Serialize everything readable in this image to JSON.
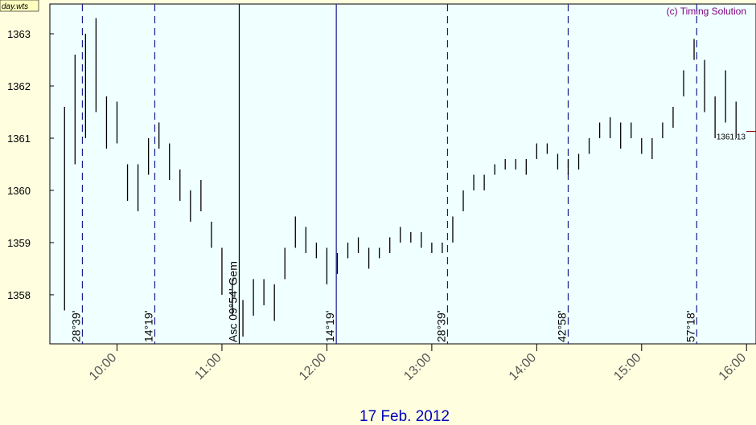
{
  "chart_data": {
    "type": "range-bar",
    "file_label": "day.wts",
    "copyright": "(c) Timing Solution",
    "date_label": "17 Feb. 2012",
    "color": "#000000",
    "x": [
      9.5,
      9.6,
      9.7,
      9.8,
      9.9,
      10.0,
      10.1,
      10.2,
      10.3,
      10.4,
      10.5,
      10.6,
      10.7,
      10.8,
      10.9,
      11.0,
      11.1,
      11.2,
      11.3,
      11.4,
      11.5,
      11.6,
      11.7,
      11.8,
      11.9,
      12.0,
      12.1,
      12.2,
      12.3,
      12.4,
      12.5,
      12.6,
      12.7,
      12.8,
      12.9,
      13.0,
      13.1,
      13.2,
      13.3,
      13.4,
      13.5,
      13.6,
      13.7,
      13.8,
      13.9,
      14.0,
      14.1,
      14.2,
      14.3,
      14.4,
      14.5,
      14.6,
      14.7,
      14.8,
      14.9,
      15.0,
      15.1,
      15.2,
      15.3,
      15.4,
      15.5,
      15.6,
      15.7,
      15.8,
      15.9
    ],
    "low": [
      1357.7,
      1360.5,
      1361.0,
      1361.5,
      1360.8,
      1360.9,
      1359.8,
      1359.6,
      1360.3,
      1360.8,
      1360.2,
      1359.8,
      1359.4,
      1359.6,
      1358.9,
      1358.0,
      1357.6,
      1357.2,
      1357.6,
      1357.8,
      1357.5,
      1358.3,
      1358.9,
      1358.8,
      1358.7,
      1358.2,
      1358.4,
      1358.7,
      1358.8,
      1358.5,
      1358.7,
      1358.8,
      1359.0,
      1359.0,
      1358.9,
      1358.8,
      1358.8,
      1359.0,
      1359.6,
      1360.0,
      1360.0,
      1360.3,
      1360.4,
      1360.4,
      1360.3,
      1360.6,
      1360.7,
      1360.4,
      1360.3,
      1360.4,
      1360.7,
      1361.0,
      1361.0,
      1360.8,
      1361.0,
      1360.7,
      1360.6,
      1361.0,
      1361.2,
      1361.8,
      1362.5,
      1361.5,
      1361.0,
      1361.3,
      1361.0
    ],
    "high": [
      1361.6,
      1362.6,
      1363.0,
      1363.3,
      1361.8,
      1361.7,
      1360.5,
      1360.5,
      1361.0,
      1361.3,
      1360.9,
      1360.4,
      1360.0,
      1360.2,
      1359.4,
      1358.9,
      1358.3,
      1357.9,
      1358.3,
      1358.3,
      1358.2,
      1358.9,
      1359.5,
      1359.3,
      1359.0,
      1358.9,
      1358.8,
      1359.0,
      1359.1,
      1358.9,
      1358.9,
      1359.1,
      1359.3,
      1359.2,
      1359.2,
      1359.0,
      1359.0,
      1359.5,
      1360.0,
      1360.3,
      1360.3,
      1360.5,
      1360.6,
      1360.6,
      1360.6,
      1360.9,
      1360.9,
      1360.7,
      1360.6,
      1360.7,
      1361.0,
      1361.3,
      1361.4,
      1361.3,
      1361.3,
      1361.0,
      1361.0,
      1361.3,
      1361.6,
      1362.3,
      1362.9,
      1362.5,
      1361.8,
      1362.3,
      1361.7
    ],
    "last_price": 1361.13,
    "xlim": [
      9.36,
      16.09
    ],
    "ylim": [
      1357.06,
      1363.57
    ],
    "yticks": [
      1358,
      1359,
      1360,
      1361,
      1362,
      1363
    ],
    "xticks": [
      {
        "value": 10,
        "label": "10:00"
      },
      {
        "value": 11,
        "label": "11:00"
      },
      {
        "value": 12,
        "label": "12:00"
      },
      {
        "value": 13,
        "label": "13:00"
      },
      {
        "value": 14,
        "label": "14:00"
      },
      {
        "value": 15,
        "label": "15:00"
      },
      {
        "value": 16,
        "label": "16:00"
      }
    ],
    "events": [
      {
        "x": 9.67,
        "label": "28°39'",
        "style": "dashed",
        "color": "#1a1a8c"
      },
      {
        "x": 10.36,
        "label": "14°19'",
        "style": "dashed",
        "color": "#1a1a8c"
      },
      {
        "x": 11.165,
        "label": "Asc 09°54' Gem",
        "style": "solid",
        "color": "#000000"
      },
      {
        "x": 12.09,
        "label": "14°19'",
        "style": "solid",
        "color": "#1a1a8c"
      },
      {
        "x": 13.15,
        "label": "28°39'",
        "style": "dashed",
        "color": "#1a1a8c"
      },
      {
        "x": 14.3,
        "label": "42°58'",
        "style": "dashed",
        "color": "#1a1a8c"
      },
      {
        "x": 15.525,
        "label": "57°18'",
        "style": "dashed",
        "color": "#1a1a8c"
      }
    ]
  }
}
